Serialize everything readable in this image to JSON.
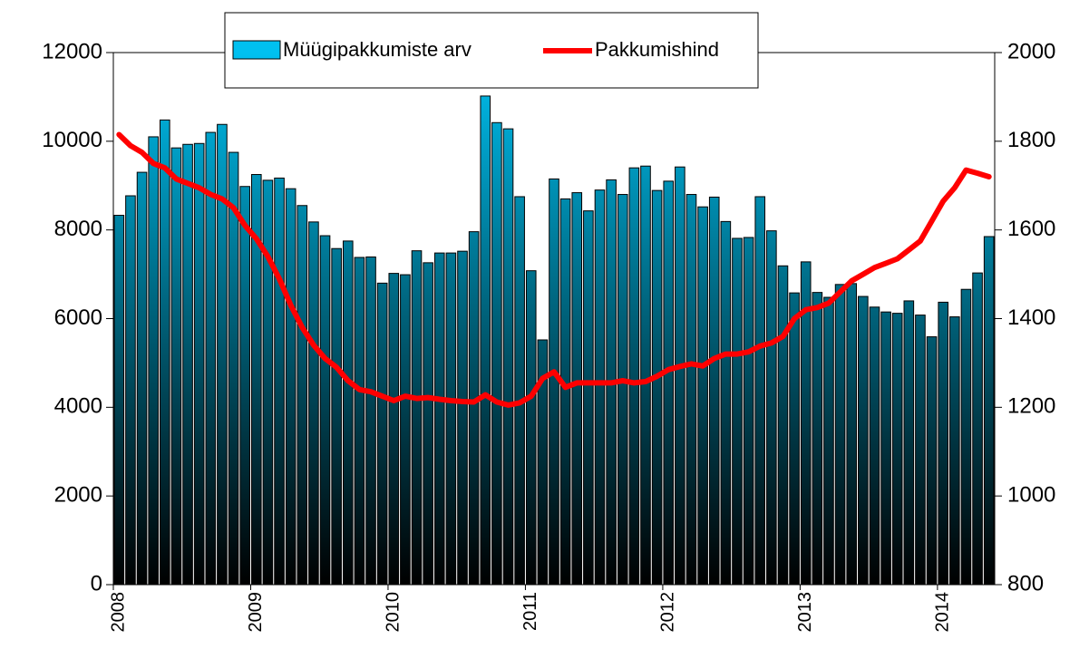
{
  "chart_data": {
    "type": "bar-line",
    "categories": [
      "2008",
      null,
      null,
      null,
      null,
      null,
      null,
      null,
      null,
      null,
      null,
      null,
      "2009",
      null,
      null,
      null,
      null,
      null,
      null,
      null,
      null,
      null,
      null,
      null,
      "2010",
      null,
      null,
      null,
      null,
      null,
      null,
      null,
      null,
      null,
      null,
      null,
      "2011",
      null,
      null,
      null,
      null,
      null,
      null,
      null,
      null,
      null,
      null,
      null,
      "2012",
      null,
      null,
      null,
      null,
      null,
      null,
      null,
      null,
      null,
      null,
      null,
      "2013",
      null,
      null,
      null,
      null,
      null,
      null,
      null,
      null,
      null,
      null,
      null,
      "2014",
      null,
      null,
      null,
      null
    ],
    "series": [
      {
        "name": "Müügipakkumiste arv",
        "type": "bar",
        "color": "#00c0f0",
        "values": [
          8330,
          8770,
          9300,
          10100,
          10480,
          9850,
          9930,
          9950,
          10200,
          10380,
          9750,
          8980,
          9250,
          9120,
          9170,
          8930,
          8550,
          8180,
          7870,
          7580,
          7750,
          7380,
          7390,
          6800,
          7020,
          6990,
          7530,
          7260,
          7480,
          7480,
          7520,
          7960,
          11020,
          10420,
          10280,
          8750,
          7080,
          5520,
          9150,
          8700,
          8840,
          8430,
          8900,
          9130,
          8800,
          9400,
          9440,
          8890,
          9100,
          9420,
          8800,
          8520,
          8740,
          8190,
          7810,
          7830,
          8750,
          7980,
          7190,
          6580,
          7280,
          6590,
          6480,
          6770,
          6790,
          6500,
          6260,
          6150,
          6120,
          6400,
          6080,
          5590,
          6370,
          6040,
          6660,
          7030,
          7850
        ]
      },
      {
        "name": "Pakkumishind",
        "type": "line",
        "axis": "y2",
        "color": "#ff0000",
        "values": [
          1815,
          1790,
          1775,
          1750,
          1740,
          1715,
          1705,
          1695,
          1680,
          1670,
          1650,
          1610,
          1580,
          1540,
          1490,
          1430,
          1380,
          1340,
          1310,
          1290,
          1260,
          1240,
          1235,
          1225,
          1215,
          1225,
          1220,
          1222,
          1218,
          1215,
          1213,
          1212,
          1228,
          1212,
          1205,
          1210,
          1225,
          1265,
          1280,
          1245,
          1255,
          1255,
          1255,
          1255,
          1260,
          1255,
          1258,
          1270,
          1285,
          1292,
          1298,
          1293,
          1310,
          1320,
          1320,
          1325,
          1338,
          1345,
          1360,
          1400,
          1420,
          1425,
          1435,
          1460,
          1485,
          1500,
          1515,
          1525,
          1535,
          1555,
          1575,
          1620,
          1665,
          1695,
          1735,
          1728,
          1720
        ]
      }
    ],
    "ylim": [
      0,
      12000
    ],
    "yticks": [
      0,
      2000,
      4000,
      6000,
      8000,
      10000,
      12000
    ],
    "y2lim": [
      800,
      2000
    ],
    "y2ticks": [
      800,
      1000,
      1200,
      1400,
      1600,
      1800,
      2000
    ],
    "legend": "top"
  }
}
